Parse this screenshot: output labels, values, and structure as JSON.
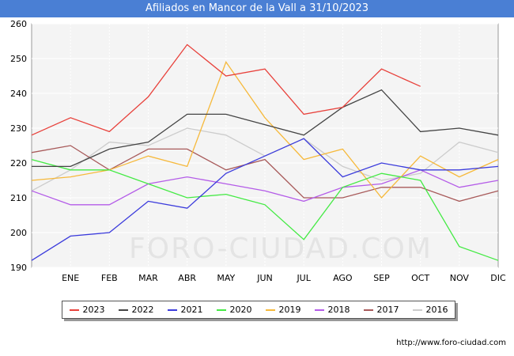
{
  "header": {
    "title": "Afiliados en Mancor de la Vall a 31/10/2023"
  },
  "source": "http://www.foro-ciudad.com",
  "watermark": "FORO-CIUDAD.COM",
  "chart_data": {
    "type": "line",
    "title": "Afiliados en Mancor de la Vall a 31/10/2023",
    "x": [
      "",
      "ENE",
      "FEB",
      "MAR",
      "ABR",
      "MAY",
      "JUN",
      "JUL",
      "AGO",
      "SEP",
      "OCT",
      "NOV",
      "DIC"
    ],
    "ylim": [
      190,
      260
    ],
    "yticks": [
      190,
      200,
      210,
      220,
      230,
      240,
      250,
      260
    ],
    "grid": true,
    "legend_position": "bottom",
    "series": [
      {
        "name": "2023",
        "color": "#e8413b",
        "values": [
          228,
          233,
          229,
          239,
          254,
          245,
          247,
          234,
          236,
          247,
          242,
          null,
          null
        ]
      },
      {
        "name": "2022",
        "color": "#444444",
        "values": [
          219,
          219,
          224,
          226,
          234,
          234,
          231,
          228,
          236,
          241,
          229,
          230,
          228
        ]
      },
      {
        "name": "2021",
        "color": "#3b3bdc",
        "values": [
          192,
          199,
          200,
          209,
          207,
          217,
          222,
          227,
          216,
          220,
          218,
          218,
          219
        ]
      },
      {
        "name": "2020",
        "color": "#44ea44",
        "values": [
          221,
          218,
          218,
          214,
          210,
          211,
          208,
          198,
          213,
          217,
          215,
          196,
          192
        ]
      },
      {
        "name": "2019",
        "color": "#f6b93b",
        "values": [
          215,
          216,
          218,
          222,
          219,
          249,
          233,
          221,
          224,
          210,
          222,
          216,
          221
        ]
      },
      {
        "name": "2018",
        "color": "#b45ce8",
        "values": [
          212,
          208,
          208,
          214,
          216,
          214,
          212,
          209,
          213,
          214,
          218,
          213,
          215
        ]
      },
      {
        "name": "2017",
        "color": "#a85a5a",
        "values": [
          223,
          225,
          218,
          224,
          224,
          218,
          221,
          210,
          210,
          213,
          213,
          209,
          212
        ]
      },
      {
        "name": "2016",
        "color": "#cccccc",
        "values": [
          212,
          218,
          226,
          225,
          230,
          228,
          222,
          227,
          219,
          215,
          217,
          226,
          223
        ]
      }
    ]
  }
}
